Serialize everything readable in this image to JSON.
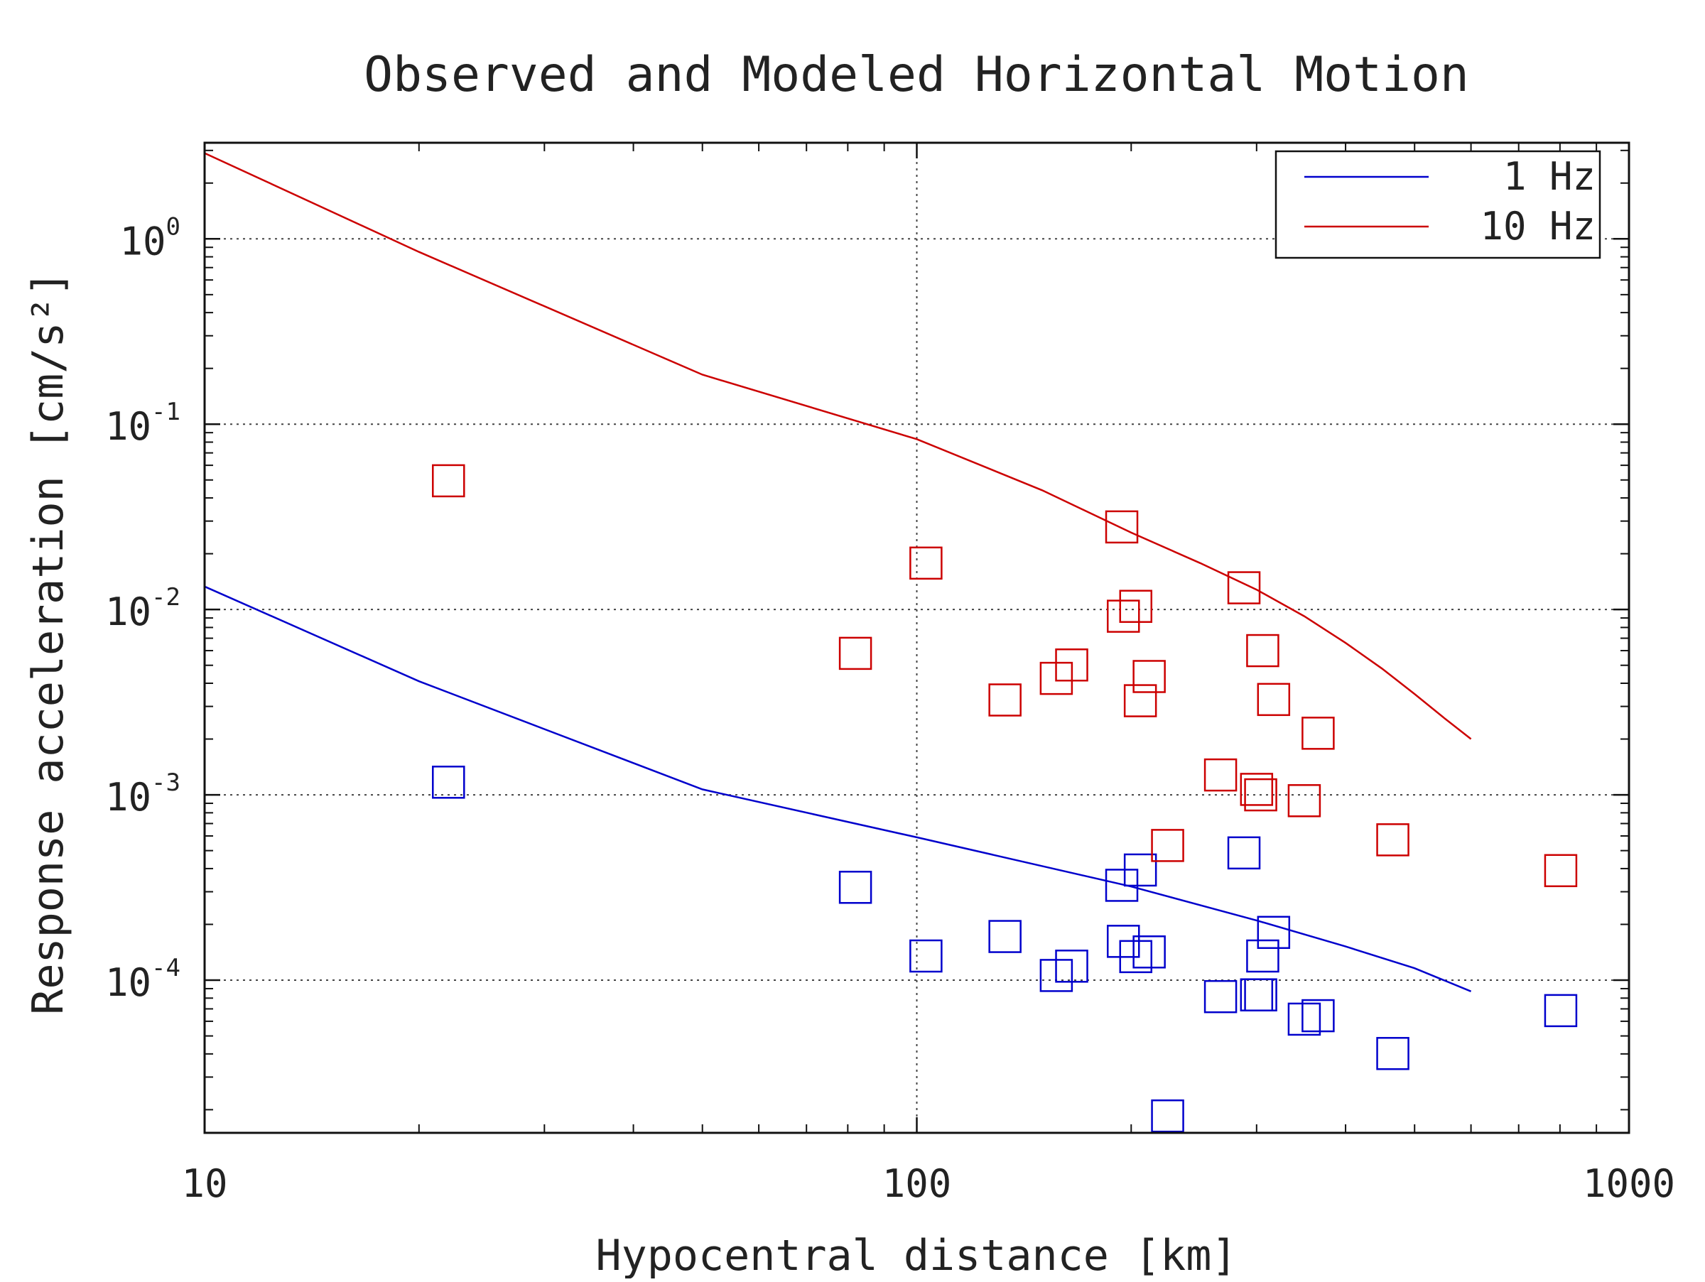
{
  "chart_data": {
    "type": "line",
    "title": "Observed and Modeled Horizontal Motion",
    "xlabel": "Hypocentral distance [km]",
    "ylabel": "Response acceleration [cm/s²]",
    "x_scale": "log",
    "y_scale": "log",
    "xlim": [
      10,
      1000
    ],
    "ylim": [
      1.5e-05,
      3.3
    ],
    "x_ticks": [
      {
        "value": 10,
        "label": "10"
      },
      {
        "value": 100,
        "label": "100"
      },
      {
        "value": 1000,
        "label": "1000"
      }
    ],
    "y_ticks": [
      {
        "value": 1,
        "base": "10",
        "exp": "0"
      },
      {
        "value": 0.1,
        "base": "10",
        "exp": "-1"
      },
      {
        "value": 0.01,
        "base": "10",
        "exp": "-2"
      },
      {
        "value": 0.001,
        "base": "10",
        "exp": "-3"
      },
      {
        "value": 0.0001,
        "base": "10",
        "exp": "-4"
      }
    ],
    "grid": {
      "x": "major",
      "y": "major",
      "style": "dotted"
    },
    "legend_position": "top-right",
    "series": [
      {
        "name": "1 Hz",
        "kind": "line",
        "color": "#0000cc",
        "x": [
          10,
          20,
          50,
          100,
          200,
          300,
          400,
          500,
          600
        ],
        "y": [
          0.0133,
          0.0041,
          0.00107,
          0.00059,
          0.00032,
          0.00021,
          0.000152,
          0.000116,
          8.7e-05
        ]
      },
      {
        "name": "10 Hz",
        "kind": "line",
        "color": "#cc0000",
        "x": [
          10,
          20,
          50,
          100,
          150,
          200,
          250,
          300,
          350,
          400,
          450,
          500,
          550,
          600
        ],
        "y": [
          2.9,
          0.85,
          0.185,
          0.083,
          0.044,
          0.026,
          0.0178,
          0.0128,
          0.0092,
          0.0066,
          0.0048,
          0.0035,
          0.0026,
          0.002
        ]
      },
      {
        "name": "",
        "kind": "markers",
        "marker": "square",
        "color": "#0000cc",
        "x": [
          22,
          82,
          103,
          133,
          157,
          165,
          194,
          195,
          203,
          206,
          212,
          225,
          267,
          288,
          300,
          304,
          306,
          317,
          350,
          366,
          466,
          802
        ],
        "y": [
          0.00117,
          0.000317,
          0.000135,
          0.000172,
          0.000106,
          0.000119,
          0.000325,
          0.000162,
          0.000134,
          0.000393,
          0.000142,
          1.85e-05,
          8.15e-05,
          0.000486,
          8.33e-05,
          8.33e-05,
          0.000135,
          0.000181,
          6.16e-05,
          6.43e-05,
          4.02e-05,
          6.85e-05
        ]
      },
      {
        "name": "",
        "kind": "markers",
        "marker": "square",
        "color": "#cc0000",
        "x": [
          22,
          82,
          103,
          133,
          157,
          165,
          194,
          195,
          203,
          206,
          212,
          225,
          267,
          288,
          300,
          304,
          306,
          317,
          350,
          366,
          466,
          802
        ],
        "y": [
          0.0495,
          0.0058,
          0.0178,
          0.00325,
          0.00425,
          0.00502,
          0.0279,
          0.0092,
          0.0104,
          0.00322,
          0.00435,
          0.000533,
          0.00128,
          0.0131,
          0.00107,
          0.001,
          0.006,
          0.00327,
          0.00093,
          0.00215,
          0.000572,
          0.00039
        ]
      }
    ]
  }
}
